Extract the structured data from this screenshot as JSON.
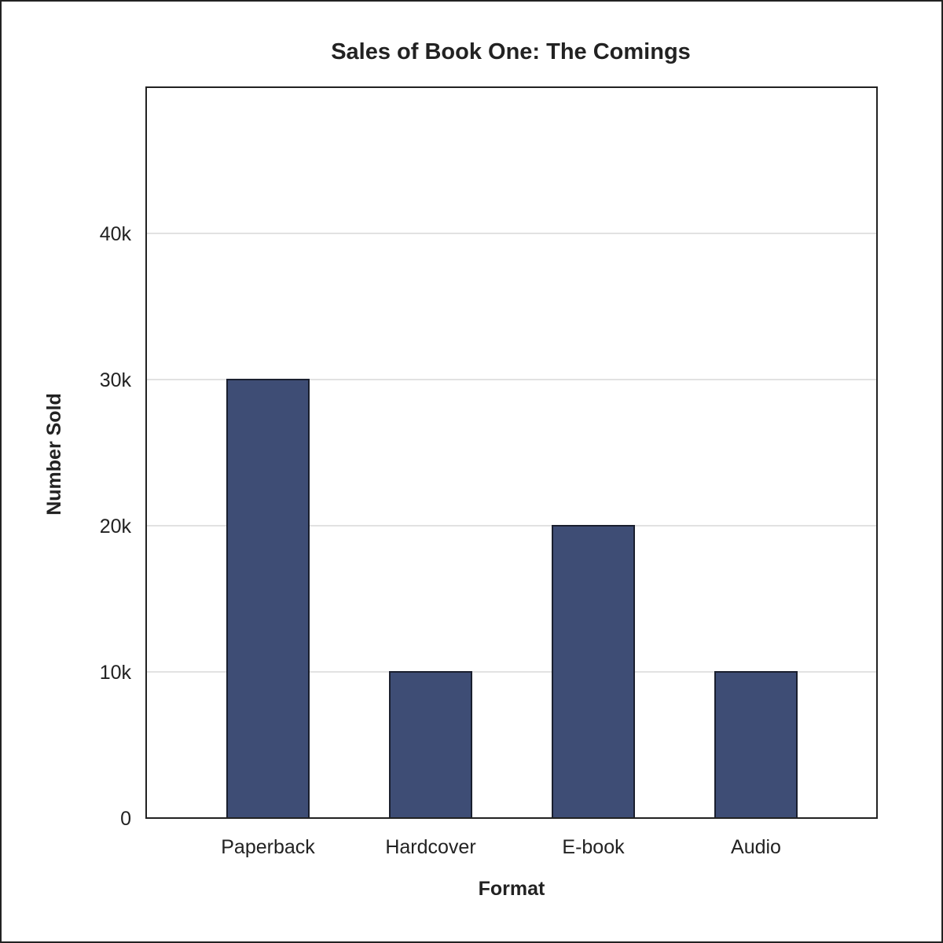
{
  "chart_data": {
    "type": "bar",
    "title": "Sales of Book One: The Comings",
    "xlabel": "Format",
    "ylabel": "Number Sold",
    "categories": [
      "Paperback",
      "Hardcover",
      "E-book",
      "Audio"
    ],
    "values": [
      30000,
      10000,
      20000,
      10000
    ],
    "ylim": [
      0,
      50000
    ],
    "yticks": [
      0,
      10000,
      20000,
      30000,
      40000
    ],
    "ytick_labels": [
      "0",
      "10k",
      "20k",
      "30k",
      "40k"
    ],
    "grid": true,
    "bar_color": "#3e4d75"
  }
}
